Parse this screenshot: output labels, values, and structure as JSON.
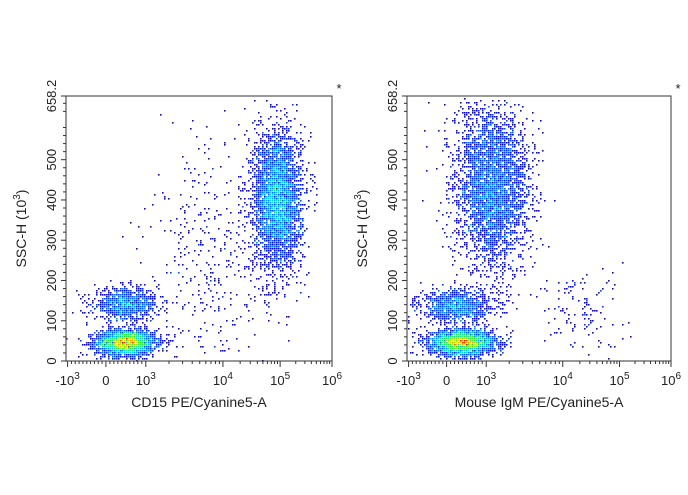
{
  "chart_data": [
    {
      "type": "scatter",
      "subtype": "flow-cytometry-density-dot-plot",
      "corner_mark": "*",
      "xlabel": "CD15 PE/Cyanine5-A",
      "ylabel": "SSC-H",
      "ylabel_unit_base": "10",
      "ylabel_unit_exp": "3",
      "x_scale": "biexponential",
      "x_ticks": [
        {
          "base": "-10",
          "exp": "3",
          "value": -1000
        },
        {
          "base": "0",
          "exp": "",
          "value": 0
        },
        {
          "base": "10",
          "exp": "3",
          "value": 1000
        },
        {
          "base": "10",
          "exp": "4",
          "value": 10000
        },
        {
          "base": "10",
          "exp": "5",
          "value": 100000
        },
        {
          "base": "10",
          "exp": "6",
          "value": 1000000
        }
      ],
      "y_ticks": [
        "0",
        "100",
        "200",
        "300",
        "400",
        "500",
        "658.2"
      ],
      "ylim": [
        0,
        658.2
      ],
      "colormap": "jet (blue = low density, red = high density)",
      "populations": [
        {
          "x": 500,
          "y": 45,
          "sd_y": 16,
          "count": 2600
        },
        {
          "x": 500,
          "y": 140,
          "sd_y": 20,
          "count": 900
        },
        {
          "x": 90000,
          "y": 400,
          "sd_y": 85,
          "count": 3600
        },
        {
          "x": 8000,
          "y": 250,
          "sd_y": 160,
          "count": 420
        }
      ]
    },
    {
      "type": "scatter",
      "subtype": "flow-cytometry-density-dot-plot",
      "corner_mark": "*",
      "xlabel": "Mouse IgM PE/Cyanine5-A",
      "ylabel": "SSC-H",
      "ylabel_unit_base": "10",
      "ylabel_unit_exp": "3",
      "x_scale": "biexponential",
      "x_ticks": [
        {
          "base": "-10",
          "exp": "3",
          "value": -1000
        },
        {
          "base": "0",
          "exp": "",
          "value": 0
        },
        {
          "base": "10",
          "exp": "3",
          "value": 1000
        },
        {
          "base": "10",
          "exp": "4",
          "value": 10000
        },
        {
          "base": "10",
          "exp": "5",
          "value": 100000
        },
        {
          "base": "10",
          "exp": "6",
          "value": 1000000
        }
      ],
      "y_ticks": [
        "0",
        "100",
        "200",
        "300",
        "400",
        "500",
        "658.2"
      ],
      "ylim": [
        0,
        658.2
      ],
      "colormap": "jet (blue = low density, red = high density)",
      "populations": [
        {
          "x": 400,
          "y": 45,
          "sd_y": 16,
          "count": 2800
        },
        {
          "x": 250,
          "y": 135,
          "sd_y": 20,
          "count": 1000
        },
        {
          "x": 1200,
          "y": 430,
          "sd_y": 100,
          "count": 3600
        },
        {
          "x": 20000,
          "y": 120,
          "sd_y": 60,
          "count": 130
        }
      ]
    }
  ]
}
